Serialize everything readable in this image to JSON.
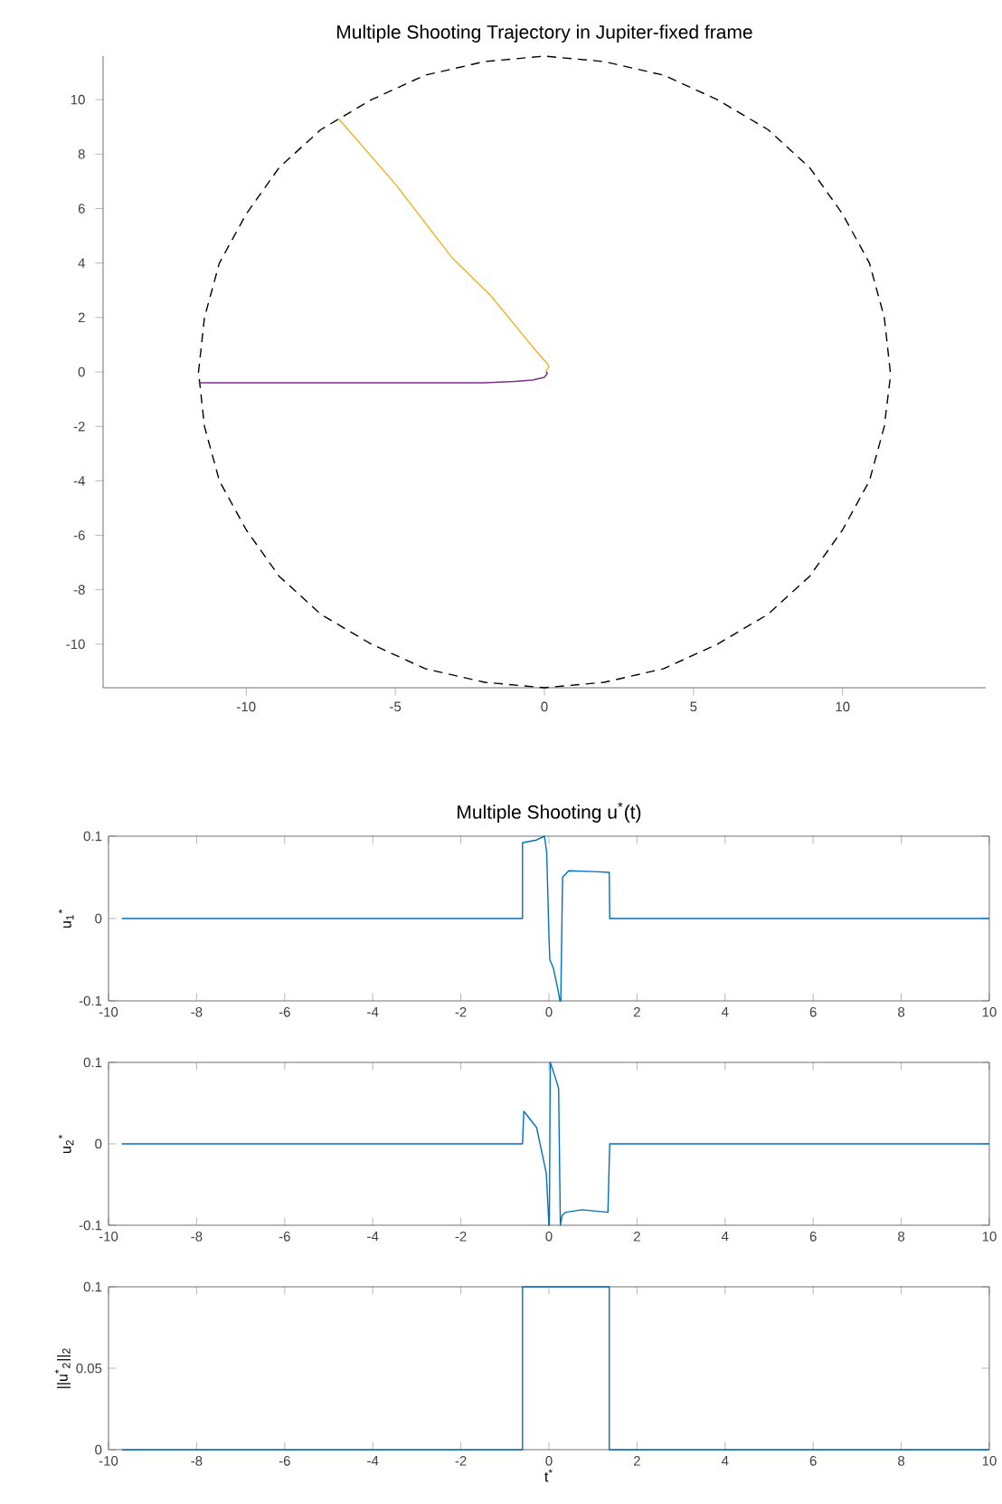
{
  "chart_data": [
    {
      "type": "line",
      "title": "Multiple Shooting Trajectory in Jupiter-fixed frame",
      "xlim": [
        -14.8,
        14.8
      ],
      "ylim": [
        -11.6,
        11.6
      ],
      "xticks": [
        -10,
        -5,
        0,
        5,
        10
      ],
      "yticks": [
        -10,
        -8,
        -6,
        -4,
        -2,
        0,
        2,
        4,
        6,
        8,
        10
      ],
      "marker": "none",
      "series": [
        {
          "color": "#000000",
          "line_style": "dashed",
          "x": [
            11.6,
            11.4,
            10.9,
            10.0,
            8.9,
            7.5,
            5.8,
            4.0,
            2.0,
            0,
            -2.0,
            -4.0,
            -5.8,
            -7.5,
            -8.9,
            -10.0,
            -10.9,
            -11.4,
            -11.6,
            -11.4,
            -10.9,
            -10.0,
            -8.9,
            -7.5,
            -5.8,
            -4.0,
            -2.0,
            0,
            2.0,
            4.0,
            5.8,
            7.5,
            8.9,
            10.0,
            10.9,
            11.4,
            11.6
          ],
          "values": [
            0,
            2.0,
            4.0,
            5.8,
            7.5,
            8.9,
            10.0,
            10.9,
            11.4,
            11.6,
            11.4,
            10.9,
            10.0,
            8.9,
            7.5,
            5.8,
            4.0,
            2.0,
            0,
            -2.0,
            -4.0,
            -5.8,
            -7.5,
            -8.9,
            -10.0,
            -10.9,
            -11.4,
            -11.6,
            -11.4,
            -10.9,
            -10.0,
            -8.9,
            -7.5,
            -5.8,
            -4.0,
            -2.0,
            -0.2
          ]
        },
        {
          "color": "#edb120",
          "line_style": "solid",
          "x": [
            -6.9,
            -5.0,
            -3.1,
            -1.8,
            -0.9,
            -0.3,
            0.1,
            0.15,
            0.05
          ],
          "values": [
            9.3,
            6.9,
            4.2,
            2.8,
            1.6,
            0.8,
            0.3,
            0.2,
            0
          ]
        },
        {
          "color": "#7e2f8e",
          "line_style": "solid",
          "x": [
            -11.6,
            -8,
            -5,
            -3,
            -2,
            -1,
            -0.4,
            0,
            0.1,
            0.05
          ],
          "values": [
            -0.4,
            -0.4,
            -0.4,
            -0.4,
            -0.4,
            -0.35,
            -0.3,
            -0.2,
            -0.05,
            0
          ]
        }
      ]
    },
    {
      "type": "line",
      "title": "Multiple Shooting  u$^{*}$(t)",
      "ylabel": "u$_{1}$$^{*}$",
      "xlim": [
        -10,
        10
      ],
      "ylim": [
        -0.1,
        0.1
      ],
      "xticks": [
        -10,
        -8,
        -6,
        -4,
        -2,
        0,
        2,
        4,
        6,
        8,
        10
      ],
      "yticks": [
        -0.1,
        0,
        0.1
      ],
      "marker": "none",
      "series": [
        {
          "color": "#0072bd",
          "line_style": "solid",
          "x": [
            -9.7,
            -0.6,
            -0.6,
            -0.3,
            -0.1,
            -0.05,
            0,
            0.02,
            0.1,
            0.2,
            0.25,
            0.27,
            0.31,
            0.45,
            1.0,
            1.37,
            1.38,
            10
          ],
          "values": [
            0,
            0,
            0.092,
            0.095,
            0.1,
            0.08,
            -0.02,
            -0.05,
            -0.06,
            -0.085,
            -0.1,
            -0.1,
            0.05,
            0.058,
            0.057,
            0.056,
            0,
            0
          ]
        }
      ]
    },
    {
      "type": "line",
      "ylabel": "u$_{2}$$^{*}$",
      "xlim": [
        -10,
        10
      ],
      "ylim": [
        -0.1,
        0.1
      ],
      "xticks": [
        -10,
        -8,
        -6,
        -4,
        -2,
        0,
        2,
        4,
        6,
        8,
        10
      ],
      "yticks": [
        -0.1,
        0,
        0.1
      ],
      "marker": "none",
      "series": [
        {
          "color": "#0072bd",
          "line_style": "solid",
          "x": [
            -9.7,
            -0.6,
            -0.57,
            -0.28,
            -0.06,
            0,
            0.01,
            0.03,
            0.13,
            0.22,
            0.26,
            0.3,
            0.38,
            0.75,
            1.34,
            1.38,
            10
          ],
          "values": [
            0,
            0,
            0.04,
            0.02,
            -0.036,
            -0.1,
            -0.1,
            0.1,
            0.084,
            0.068,
            -0.1,
            -0.088,
            -0.084,
            -0.081,
            -0.084,
            0,
            0
          ]
        }
      ]
    },
    {
      "type": "line",
      "ylabel": "||u$^{*}$$_{2}$||$_{2}$",
      "xlabel": "t$^{*}$",
      "xlim": [
        -10,
        10
      ],
      "ylim": [
        0,
        0.1
      ],
      "xticks": [
        -10,
        -8,
        -6,
        -4,
        -2,
        0,
        2,
        4,
        6,
        8,
        10
      ],
      "yticks": [
        0,
        0.05,
        0.1
      ],
      "marker": "none",
      "series": [
        {
          "color": "#0072bd",
          "line_style": "solid",
          "x": [
            -9.7,
            -0.6,
            -0.6,
            1.37,
            1.37,
            10
          ],
          "values": [
            0,
            0,
            0.1,
            0.1,
            0,
            0
          ]
        }
      ]
    }
  ]
}
